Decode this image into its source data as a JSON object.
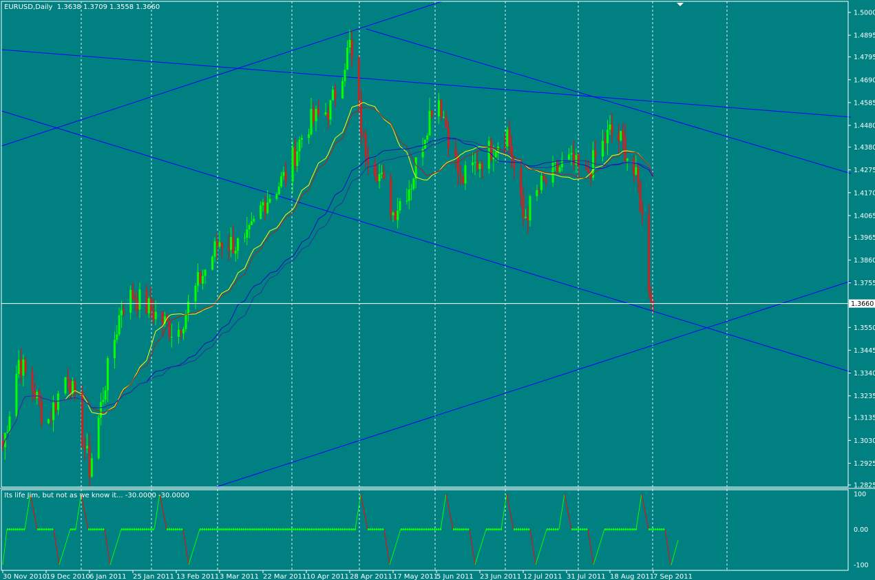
{
  "header": {
    "symbol": "EURUSD,Daily",
    "ohlc": "1.3638 1.3709 1.3558 1.3660"
  },
  "indicator": {
    "label": "Its life Jim, but not as we know it...  -30.0000 -30.0000",
    "ticks": [
      "100",
      "0.00",
      "-100"
    ]
  },
  "price_axis": {
    "ticks": [
      "1.5000",
      "1.4895",
      "1.4795",
      "1.4690",
      "1.4585",
      "1.4480",
      "1.4380",
      "1.4275",
      "1.4170",
      "1.4065",
      "1.3965",
      "1.3860",
      "1.3755",
      "1.3550",
      "1.3445",
      "1.3340",
      "1.3235",
      "1.3135",
      "1.3030",
      "1.2925",
      "1.2825"
    ],
    "current_price": "1.3660"
  },
  "time_axis": {
    "labels": [
      "30 Nov 2010",
      "19 Dec 2010",
      "6 Jan 2011",
      "25 Jan 2011",
      "13 Feb 2011",
      "3 Mar 2011",
      "22 Mar 2011",
      "10 Apr 2011",
      "28 Apr 2011",
      "17 May 2011",
      "5 Jun 2011",
      "23 Jun 2011",
      "12 Jul 2011",
      "31 Jul 2011",
      "18 Aug 2011",
      "7 Sep 2011"
    ]
  },
  "colors": {
    "background": "#008080",
    "bull": "#00ff00",
    "bear": "#ff0000",
    "bear_body": "#cc2222",
    "ma_yellow": "#ffff00",
    "ma_red": "#b02020",
    "ma_blue": "#1010c0",
    "trendline": "#0000ff",
    "grid": "#ffffff"
  },
  "chart_data": {
    "type": "candlestick",
    "title": "EURUSD,Daily",
    "ylim": [
      1.2825,
      1.5
    ],
    "x_range": [
      "30 Nov 2010",
      "7 Sep 2011"
    ],
    "close_path": [
      [
        "30 Nov 2010",
        1.3
      ],
      [
        "7 Dec 2010",
        1.34
      ],
      [
        "14 Dec 2010",
        1.325
      ],
      [
        "19 Dec 2010",
        1.31
      ],
      [
        "28 Dec 2010",
        1.335
      ],
      [
        "6 Jan 2011",
        1.29
      ],
      [
        "13 Jan 2011",
        1.33
      ],
      [
        "20 Jan 2011",
        1.365
      ],
      [
        "25 Jan 2011",
        1.37
      ],
      [
        "3 Feb 2011",
        1.362
      ],
      [
        "13 Feb 2011",
        1.352
      ],
      [
        "22 Feb 2011",
        1.375
      ],
      [
        "3 Mar 2011",
        1.395
      ],
      [
        "14 Mar 2011",
        1.392
      ],
      [
        "22 Mar 2011",
        1.412
      ],
      [
        "1 Apr 2011",
        1.425
      ],
      [
        "10 Apr 2011",
        1.448
      ],
      [
        "20 Apr 2011",
        1.456
      ],
      [
        "28 Apr 2011",
        1.485
      ],
      [
        "4 May 2011",
        1.44
      ],
      [
        "10 May 2011",
        1.428
      ],
      [
        "17 May 2011",
        1.408
      ],
      [
        "25 May 2011",
        1.422
      ],
      [
        "5 Jun 2011",
        1.465
      ],
      [
        "15 Jun 2011",
        1.422
      ],
      [
        "23 Jun 2011",
        1.432
      ],
      [
        "5 Jul 2011",
        1.445
      ],
      [
        "12 Jul 2011",
        1.405
      ],
      [
        "20 Jul 2011",
        1.42
      ],
      [
        "31 Jul 2011",
        1.432
      ],
      [
        "8 Aug 2011",
        1.425
      ],
      [
        "18 Aug 2011",
        1.445
      ],
      [
        "24 Aug 2011",
        1.44
      ],
      [
        "31 Aug 2011",
        1.42
      ],
      [
        "2 Sep 2011",
        1.405
      ],
      [
        "5 Sep 2011",
        1.375
      ],
      [
        "7 Sep 2011",
        1.366
      ]
    ],
    "series": [
      {
        "name": "",
        "role": "fast moving average",
        "color": "yellow"
      },
      {
        "name": "",
        "role": "moving average",
        "color": "dark red"
      },
      {
        "name": "",
        "role": "slow moving averages",
        "color": "blue"
      }
    ],
    "trendlines": 5,
    "indicator_range": [
      -100,
      100
    ]
  }
}
